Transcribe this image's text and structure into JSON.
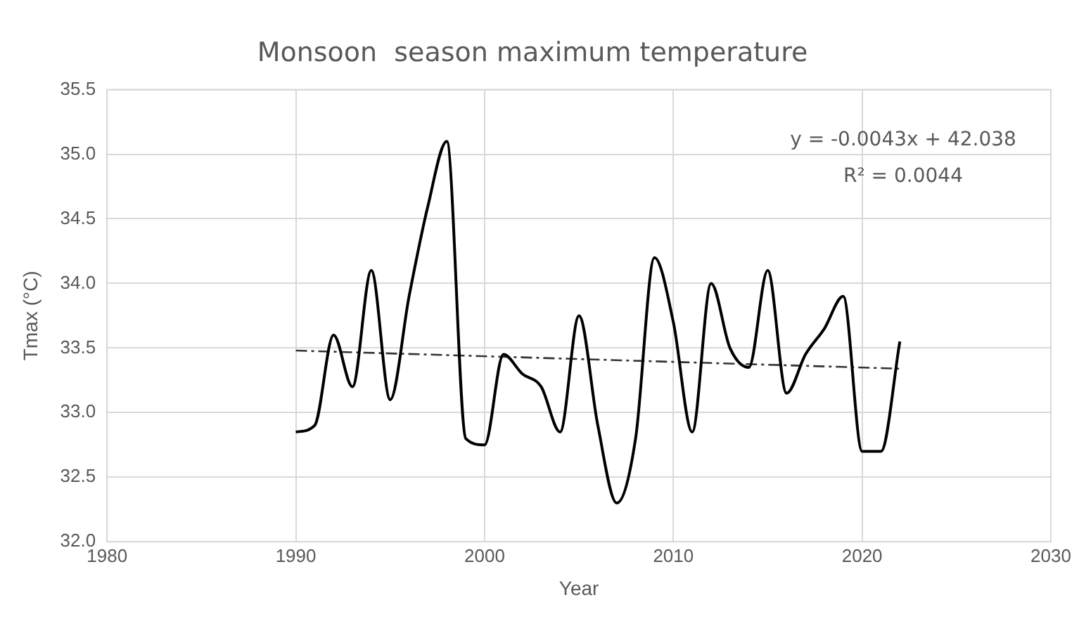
{
  "chart_data": {
    "type": "line",
    "title": "Monsoon  season maximum temperature",
    "xlabel": "Year",
    "ylabel": "Tmax (°C)",
    "xlim": [
      1980,
      2030
    ],
    "xticks": [
      1980,
      1990,
      2000,
      2010,
      2020,
      2030
    ],
    "ylim": [
      32.0,
      35.5
    ],
    "yticks": [
      {
        "value": 32.0,
        "label": "32.0"
      },
      {
        "value": 32.5,
        "label": "32.5"
      },
      {
        "value": 33.0,
        "label": "33.0"
      },
      {
        "value": 33.5,
        "label": "33.5"
      },
      {
        "value": 34.0,
        "label": "34.0"
      },
      {
        "value": 34.5,
        "label": "34.5"
      },
      {
        "value": 35.0,
        "label": "35.0"
      },
      {
        "value": 35.5,
        "label": "35.5"
      }
    ],
    "grid": true,
    "legend": false,
    "marker": "none",
    "series": [
      {
        "color": "#000000",
        "line_style": "solid",
        "x": [
          1990,
          1991,
          1992,
          1993,
          1994,
          1995,
          1996,
          1997,
          1998,
          1999,
          2000,
          2001,
          2002,
          2003,
          2004,
          2005,
          2006,
          2007,
          2008,
          2009,
          2010,
          2011,
          2012,
          2013,
          2014,
          2015,
          2016,
          2017,
          2018,
          2019,
          2020,
          2021,
          2022
        ],
        "values": [
          32.85,
          32.9,
          33.6,
          33.2,
          34.1,
          33.1,
          33.9,
          34.6,
          35.1,
          32.8,
          32.75,
          33.45,
          33.3,
          33.2,
          32.85,
          33.75,
          32.9,
          32.3,
          32.8,
          34.2,
          33.7,
          32.85,
          34.0,
          33.5,
          33.35,
          34.1,
          33.15,
          33.45,
          33.65,
          33.9,
          32.7,
          32.7,
          33.55
        ]
      },
      {
        "type": "line",
        "color": "#333333",
        "line_style": "dashed",
        "x": [
          1990,
          2022
        ],
        "values": [
          33.48,
          33.34
        ]
      }
    ],
    "annotations": [
      "y = -0.0043x + 42.038",
      "R² = 0.0044"
    ]
  }
}
